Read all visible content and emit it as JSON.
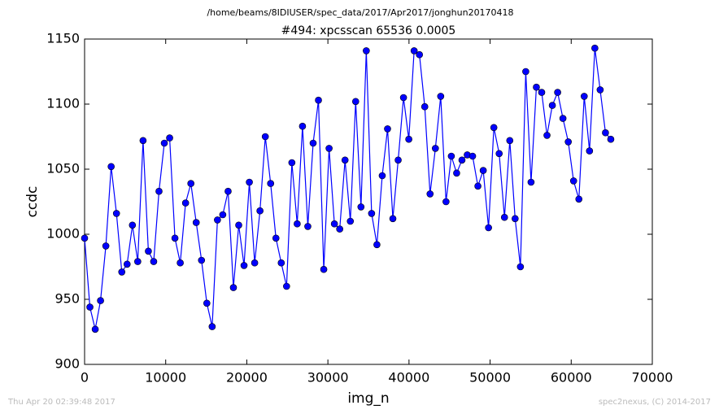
{
  "chart_data": {
    "type": "line",
    "header": "/home/beams/8IDIUSER/spec_data/2017/Apr2017/jonghun20170418",
    "title": "#494: xpcsscan 65536 0.0005",
    "x_label": "img_n",
    "y_label": "ccdc",
    "footer_left": "Thu Apr 20 02:39:48 2017",
    "footer_right": "spec2nexus, (C) 2014-2017",
    "color": "#0000ff",
    "xlim": [
      0,
      70000
    ],
    "xticks": [
      0,
      10000,
      20000,
      30000,
      40000,
      50000,
      60000,
      70000
    ],
    "ylim": [
      900,
      1150
    ],
    "yticks": [
      900,
      950,
      1000,
      1050,
      1100,
      1150
    ],
    "x": [
      0,
      655,
      1311,
      1966,
      2621,
      3277,
      3932,
      4588,
      5243,
      5898,
      6554,
      7209,
      7864,
      8520,
      9175,
      9830,
      10486,
      11141,
      11796,
      12452,
      13107,
      13763,
      14418,
      15073,
      15729,
      16384,
      17039,
      17695,
      18350,
      19005,
      19661,
      20316,
      20972,
      21627,
      22282,
      22938,
      23593,
      24248,
      24904,
      25559,
      26214,
      26870,
      27525,
      28180,
      28836,
      29491,
      30147,
      30802,
      31457,
      32113,
      32768,
      33423,
      34079,
      34734,
      35389,
      36045,
      36700,
      37356,
      38011,
      38666,
      39322,
      39977,
      40632,
      41288,
      41943,
      42598,
      43254,
      43909,
      44564,
      45220,
      45875,
      46531,
      47186,
      47841,
      48497,
      49152,
      49807,
      50463,
      51118,
      51773,
      52429,
      53084,
      53740,
      54395,
      55050,
      55706,
      56361,
      57016,
      57672,
      58327,
      58982,
      59638,
      60293,
      60948,
      61604,
      62259,
      62915,
      63570,
      64225,
      64881
    ],
    "values": [
      997,
      944,
      927,
      949,
      991,
      1052,
      1016,
      971,
      977,
      1007,
      979,
      1072,
      987,
      979,
      1033,
      1070,
      1074,
      997,
      978,
      1024,
      1039,
      1009,
      980,
      947,
      929,
      1011,
      1015,
      1033,
      959,
      1007,
      976,
      1040,
      978,
      1018,
      1075,
      1039,
      997,
      978,
      960,
      1055,
      1008,
      1083,
      1006,
      1070,
      1103,
      973,
      1066,
      1008,
      1004,
      1057,
      1010,
      1102,
      1021,
      1141,
      1016,
      992,
      1045,
      1081,
      1012,
      1057,
      1105,
      1073,
      1141,
      1138,
      1098,
      1031,
      1066,
      1106,
      1025,
      1060,
      1047,
      1057,
      1061,
      1060,
      1037,
      1049,
      1005,
      1082,
      1062,
      1013,
      1072,
      1012,
      975,
      1125,
      1040,
      1113,
      1109,
      1076,
      1099,
      1109,
      1089,
      1071,
      1041,
      1027,
      1106,
      1064,
      1143,
      1111,
      1078,
      1073
    ]
  }
}
